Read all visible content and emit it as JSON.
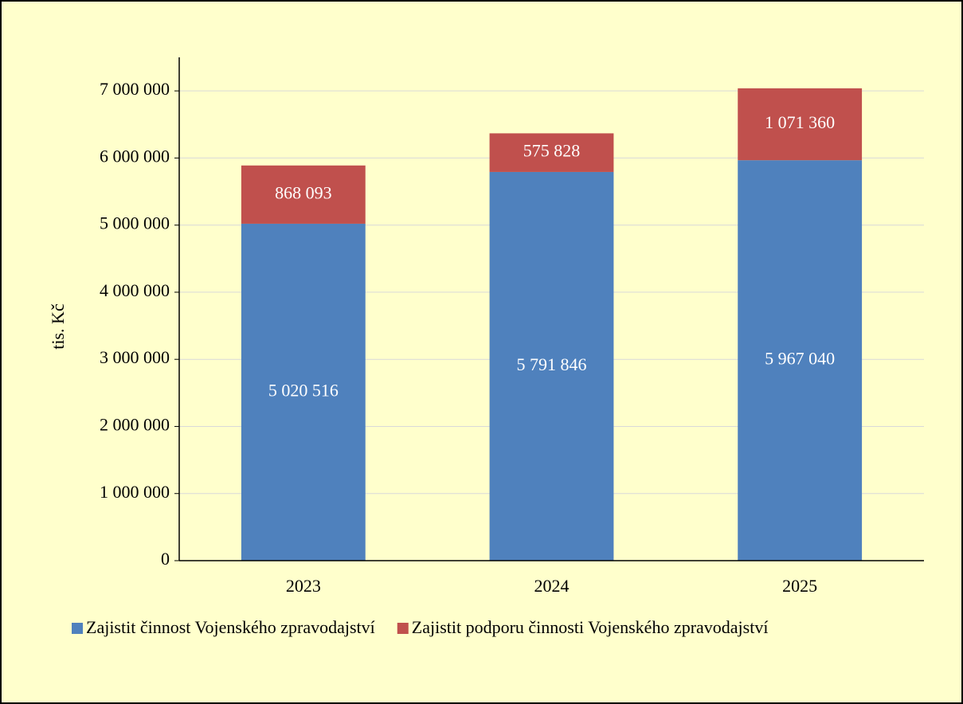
{
  "chart_data": {
    "type": "stacked_bar",
    "categories": [
      "2023",
      "2024",
      "2025"
    ],
    "series": [
      {
        "name": "Zajistit činnost Vojenského zpravodajství",
        "color": "#4f81bd",
        "values": [
          5020516,
          5791846,
          5967040
        ],
        "value_labels": [
          "5 020 516",
          "5 791 846",
          "5 967 040"
        ]
      },
      {
        "name": "Zajistit podporu činnosti Vojenského zpravodajství",
        "color": "#c0504d",
        "values": [
          868093,
          575828,
          1071360
        ],
        "value_labels": [
          "868 093",
          "575 828",
          "1 071 360"
        ]
      }
    ],
    "ylabel": "tis. Kč",
    "ylim": [
      0,
      7500000
    ],
    "yticks": [
      0,
      {
        "value": 1000000,
        "label": "1 000 000"
      },
      {
        "value": 2000000,
        "label": "2 000 000"
      },
      {
        "value": 3000000,
        "label": "3 000 000"
      },
      {
        "value": 4000000,
        "label": "4 000 000"
      },
      {
        "value": 5000000,
        "label": "5 000 000"
      },
      {
        "value": 6000000,
        "label": "6 000 000"
      },
      {
        "value": 7000000,
        "label": "7 000 000"
      }
    ],
    "grid": true,
    "legend": "bottom"
  }
}
